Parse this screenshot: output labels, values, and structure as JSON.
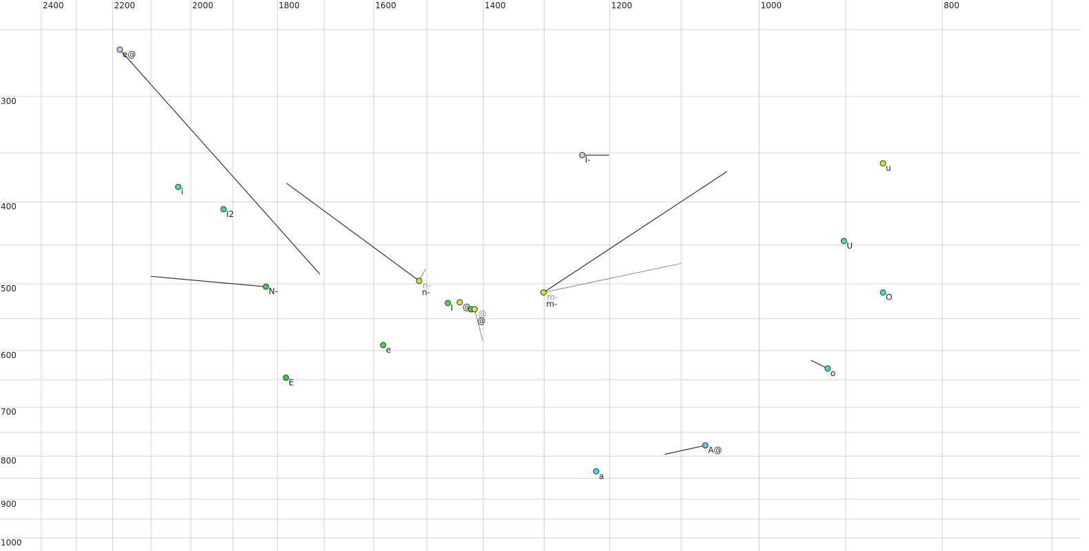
{
  "chart_data": {
    "type": "scatter",
    "xscale": "log",
    "yscale": "log",
    "xlim": [
      2400,
      700
    ],
    "ylim": [
      250,
      1000
    ],
    "xticks": [
      2400,
      2200,
      2000,
      1800,
      1600,
      1400,
      1200,
      1000,
      800
    ],
    "yticks": [
      300,
      400,
      500,
      600,
      700,
      800,
      900,
      1000
    ],
    "xgrid": [
      2400,
      2300,
      2200,
      2100,
      2000,
      1900,
      1800,
      1700,
      1600,
      1500,
      1400,
      1300,
      1200,
      1100,
      1000,
      900,
      800,
      700
    ],
    "ygrid": [
      250,
      300,
      350,
      400,
      450,
      500,
      550,
      600,
      650,
      700,
      750,
      800,
      850,
      900,
      950,
      1000
    ],
    "grid": true,
    "line_color": "#222222",
    "line2_color": "#888888",
    "label2_color": "#8888aa",
    "points": [
      {
        "label": "e@",
        "x": 2181,
        "y": 264,
        "color": "#c8c8e8",
        "end": {
          "x": 1709,
          "y": 487
        }
      },
      {
        "label": "i",
        "x": 2031,
        "y": 384,
        "color": "#40e0a0"
      },
      {
        "label": "I2",
        "x": 1922,
        "y": 408,
        "color": "#40d890"
      },
      {
        "label": "N-",
        "x": 1825,
        "y": 504,
        "color": "#40d040",
        "end": {
          "x": 2100,
          "y": 490
        }
      },
      {
        "label": "E",
        "x": 1781,
        "y": 646,
        "color": "#30d030"
      },
      {
        "label": "e",
        "x": 1582,
        "y": 591,
        "color": "#40d840"
      },
      {
        "label": "n-",
        "label2": "n-",
        "x": 1514,
        "y": 496,
        "color": "#c8e020",
        "end": {
          "x": 1780,
          "y": 380
        },
        "end2": {
          "x": 1502,
          "y": 480
        }
      },
      {
        "label": "I",
        "x": 1462,
        "y": 527,
        "color": "#40e040"
      },
      {
        "label": "@",
        "x": 1441,
        "y": 526,
        "color": "#e0e040"
      },
      {
        "label": null,
        "x": 1421,
        "y": 536,
        "color": "#40e040"
      },
      {
        "label": "@",
        "label2": "@",
        "x": 1415,
        "y": 536,
        "color": "#e0e040",
        "end2": {
          "x": 1401,
          "y": 584
        }
      },
      {
        "label": "m-",
        "label2": "m-",
        "x": 1301,
        "y": 512,
        "color": "#e0e020",
        "end": {
          "x": 1040,
          "y": 368
        },
        "end2": {
          "x": 1100,
          "y": 473
        }
      },
      {
        "label": "I-",
        "x": 1241,
        "y": 352,
        "color": "#c8c8e8",
        "end": {
          "x": 1201,
          "y": 352
        }
      },
      {
        "label": "u",
        "x": 860,
        "y": 360,
        "color": "#d8e020"
      },
      {
        "label": "U",
        "x": 902,
        "y": 445,
        "color": "#40e0c0"
      },
      {
        "label": "O",
        "x": 860,
        "y": 512,
        "color": "#40e0c8"
      },
      {
        "label": "o",
        "x": 920,
        "y": 630,
        "color": "#40e0c8",
        "end": {
          "x": 939,
          "y": 616
        }
      },
      {
        "label": "A@",
        "x": 1068,
        "y": 777,
        "color": "#60c8f0",
        "end": {
          "x": 1122,
          "y": 796
        }
      },
      {
        "label": "a",
        "x": 1220,
        "y": 834,
        "color": "#40e0e0"
      }
    ]
  }
}
